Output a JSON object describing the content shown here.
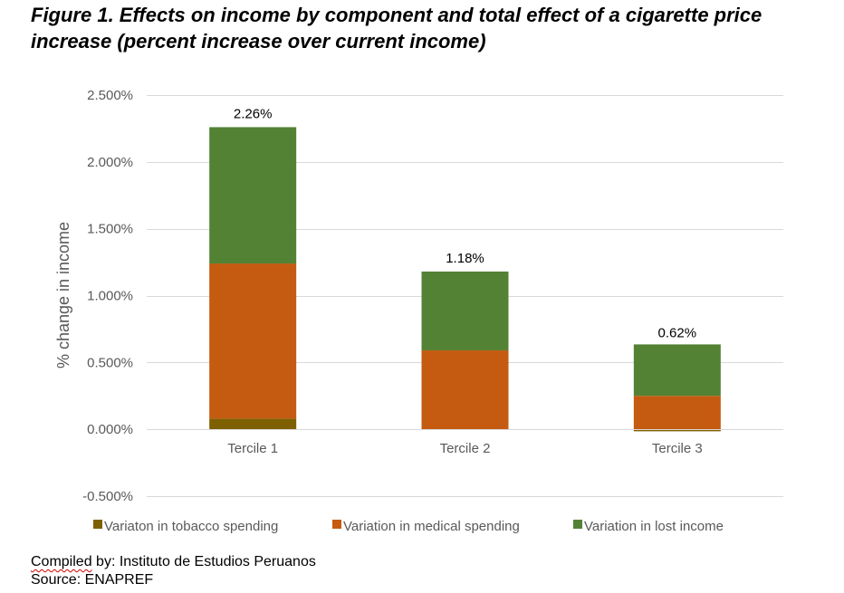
{
  "title": "Figure 1. Effects on income by component and total effect of a cigarette price increase (percent increase over current income)",
  "chart_data": {
    "type": "bar",
    "stacked": true,
    "categories": [
      "Tercile 1",
      "Tercile 2",
      "Tercile 3"
    ],
    "series": [
      {
        "name": "Variaton in tobacco spending",
        "color": "#7f6000",
        "values": [
          0.08,
          0.0,
          -0.015
        ]
      },
      {
        "name": "Variation in medical spending",
        "color": "#c55a11",
        "values": [
          1.16,
          0.59,
          0.25
        ]
      },
      {
        "name": "Variation in lost income",
        "color": "#548235",
        "values": [
          1.02,
          0.59,
          0.385
        ]
      }
    ],
    "totals": [
      2.26,
      1.18,
      0.62
    ],
    "total_labels": [
      "2.26%",
      "1.18%",
      "0.62%"
    ],
    "ylabel": "% change in income",
    "xlabel": "",
    "ylim": [
      -0.5,
      2.5
    ],
    "yticks": [
      -0.5,
      0.0,
      0.5,
      1.0,
      1.5,
      2.0,
      2.5
    ],
    "ytick_labels": [
      "-0.500%",
      "0.000%",
      "0.500%",
      "1.000%",
      "1.500%",
      "2.000%",
      "2.500%"
    ],
    "grid": true,
    "legend_position": "bottom"
  },
  "footer": {
    "compiled_prefix": "Compiled",
    "compiled_rest": " by: Instituto de Estudios Peruanos",
    "source": "Source: ENAPREF"
  }
}
